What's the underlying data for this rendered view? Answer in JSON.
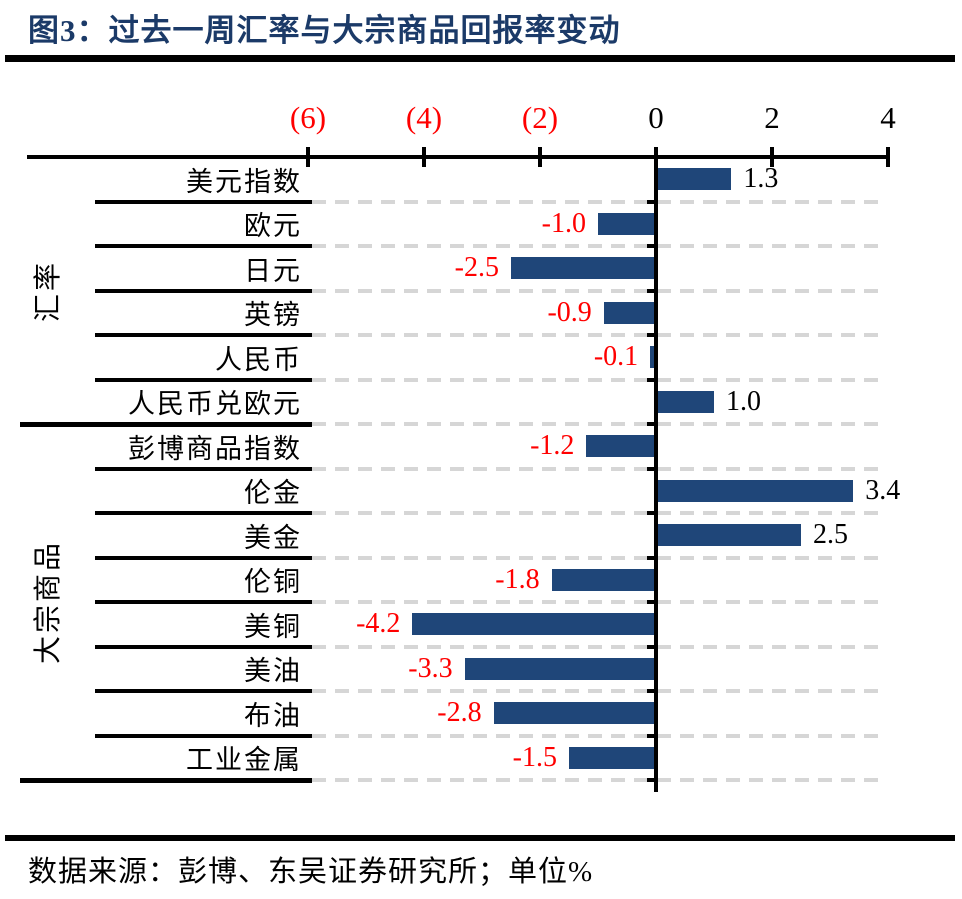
{
  "title": "图3：过去一周汇率与大宗商品回报率变动",
  "footer": "数据来源：彭博、东吴证券研究所；单位%",
  "colors": {
    "bar": "#1F4679",
    "negative_label": "#FF0000",
    "positive_label": "#000000",
    "title": "#1B3A68",
    "gridline": "#D6D6D6",
    "axis": "#000000"
  },
  "chart_data": {
    "type": "bar",
    "orientation": "horizontal",
    "title": "图3：过去一周汇率与大宗商品回报率变动",
    "unit": "%",
    "xlim": [
      -6,
      4
    ],
    "grid": "dashed-row-lines",
    "value_axis_position": "top",
    "x_ticks": [
      {
        "label": "(6)",
        "value": -6,
        "negative": true
      },
      {
        "label": "(4)",
        "value": -4,
        "negative": true
      },
      {
        "label": "(2)",
        "value": -2,
        "negative": true
      },
      {
        "label": "0",
        "value": 0,
        "negative": false
      },
      {
        "label": "2",
        "value": 2,
        "negative": false
      },
      {
        "label": "4",
        "value": 4,
        "negative": false
      }
    ],
    "groups": [
      {
        "name": "汇率",
        "rows": [
          {
            "label": "美元指数",
            "value": 1.3
          },
          {
            "label": "欧元",
            "value": -1.0
          },
          {
            "label": "日元",
            "value": -2.5
          },
          {
            "label": "英镑",
            "value": -0.9
          },
          {
            "label": "人民币",
            "value": -0.1
          },
          {
            "label": "人民币兑欧元",
            "value": 1.0
          }
        ]
      },
      {
        "name": "大宗商品",
        "rows": [
          {
            "label": "彭博商品指数",
            "value": -1.2
          },
          {
            "label": "伦金",
            "value": 3.4
          },
          {
            "label": "美金",
            "value": 2.5
          },
          {
            "label": "伦铜",
            "value": -1.8
          },
          {
            "label": "美铜",
            "value": -4.2
          },
          {
            "label": "美油",
            "value": -3.3
          },
          {
            "label": "布油",
            "value": -2.8
          },
          {
            "label": "工业金属",
            "value": -1.5
          }
        ]
      }
    ]
  }
}
